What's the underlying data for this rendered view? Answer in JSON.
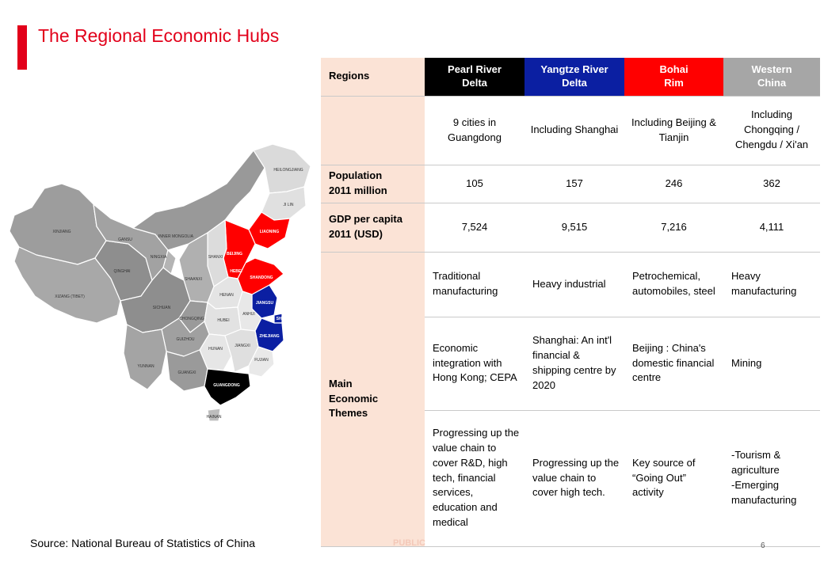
{
  "title": "The Regional Economic Hubs",
  "colors": {
    "accent": "#e2001a",
    "pearl": "#000000",
    "yangtze": "#0b1fa2",
    "bohai": "#ff0000",
    "western": "#a6a6a6",
    "label_cell": "#fbe3d6"
  },
  "map": {
    "provinces": {
      "heilongjiang": "HEILONGJIANG",
      "jilin": "JI LIN",
      "liaoning": "LIAONING",
      "beijing": "BEIJING",
      "hebei": "HEBEI",
      "shandong": "SHANDONG",
      "shanxi": "SHANXI",
      "inner_mongolia": "INNER MONGOLIA",
      "xinjiang": "XINJIANG",
      "gansu": "GANSU",
      "ningxia": "NINGXIA",
      "qinghai": "QINGHAI",
      "xizang": "XIZANG (TIBET)",
      "sichuan": "SICHUAN",
      "chongqing": "CHONGQING",
      "shaanxi": "SHAANXI",
      "henan": "HENAN",
      "hubei": "HUBEI",
      "anhui": "ANHUI",
      "jiangsu": "JIANGSU",
      "shanghai": "SHANGHAI",
      "zhejiang": "ZHEJIANG",
      "jiangxi": "JIANGXI",
      "hunan": "HUNAN",
      "fujian": "FUJIAN",
      "guizhou": "GUIZHOU",
      "yunnan": "YUNNAN",
      "guangxi": "GUANGXI",
      "guangdong": "GUANGDONG",
      "hainan": "HAINAN"
    }
  },
  "table": {
    "regions_label": "Regions",
    "headers": [
      {
        "line1": "Pearl River",
        "line2": "Delta"
      },
      {
        "line1": "Yangtze River",
        "line2": "Delta"
      },
      {
        "line1": "Bohai",
        "line2": "Rim"
      },
      {
        "line1": "Western",
        "line2": "China"
      }
    ],
    "cities": [
      "9 cities in Guangdong",
      "Including Shanghai",
      "Including Beijing & Tianjin",
      "Including Chongqing / Chengdu / Xi'an"
    ],
    "population": {
      "label_line1": "Population",
      "label_line2": "2011 million",
      "values": [
        "105",
        "157",
        "246",
        "362"
      ]
    },
    "gdp": {
      "label_line1": "GDP per capita",
      "label_line2": "2011 (USD)",
      "values": [
        "7,524",
        "9,515",
        "7,216",
        "4,111"
      ]
    },
    "themes": {
      "label_line1": "Main",
      "label_line2": "Economic",
      "label_line3": "Themes",
      "row1": [
        "Traditional manufacturing",
        "Heavy industrial",
        "Petrochemical, automobiles, steel",
        "Heavy manufacturing"
      ],
      "row2": [
        "Economic integration with Hong Kong; CEPA",
        "Shanghai: An int'l financial & shipping centre by 2020",
        "Beijing : China's domestic financial centre",
        "Mining"
      ],
      "row3": [
        "Progressing up the value chain to cover R&D, high tech, financial services, education and medical",
        "Progressing up the value chain to cover high tech.",
        "Key source of “Going Out” activity",
        "-Tourism & agriculture\n-Emerging manufacturing"
      ]
    }
  },
  "source": "Source: National Bureau of Statistics of China",
  "public_label": "PUBLIC",
  "page_number": "6"
}
